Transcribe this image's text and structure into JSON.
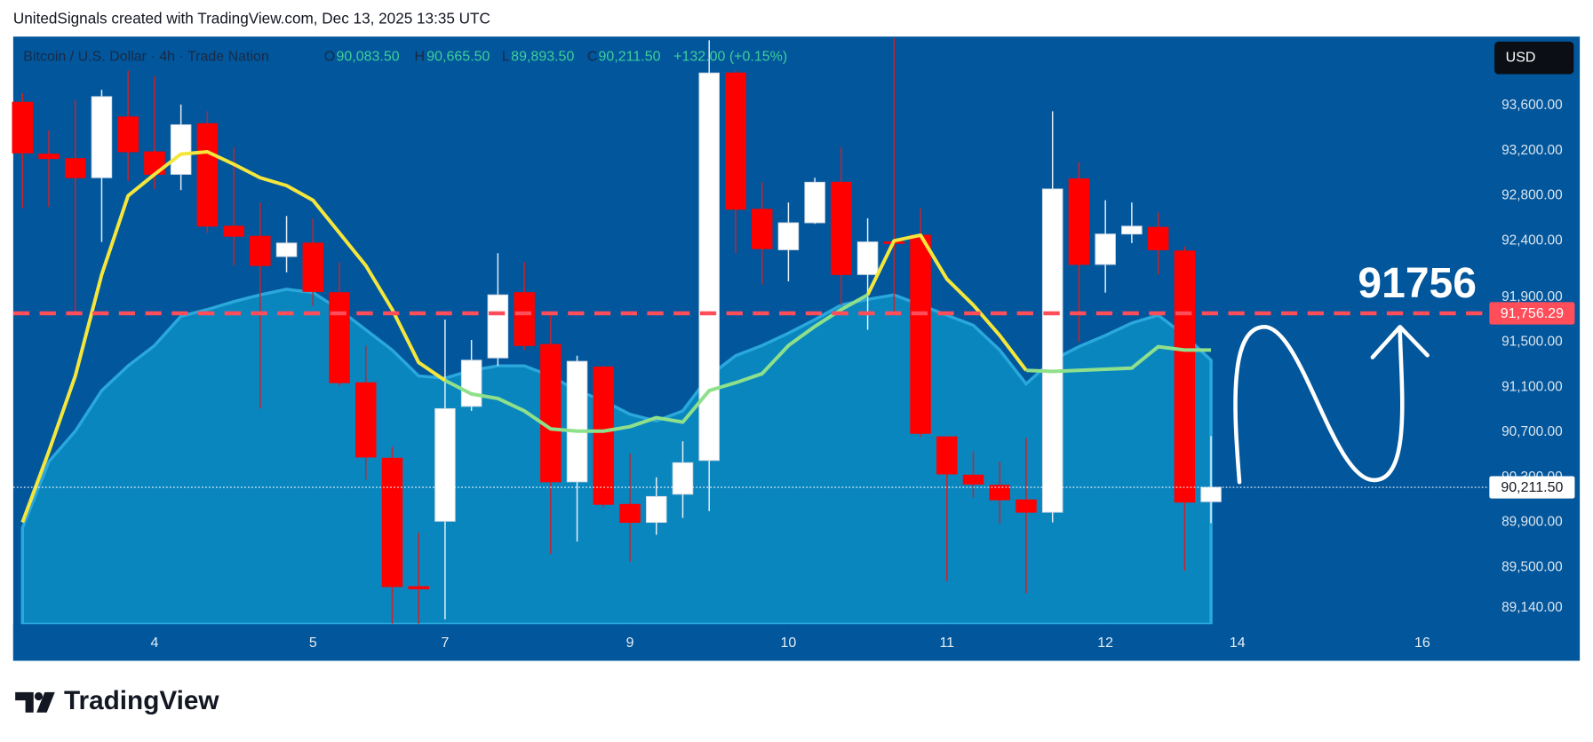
{
  "chart_data": {
    "type": "candlestick",
    "credit": "UnitedSignals created with TradingView.com, Dec 13, 2025 13:35 UTC",
    "symbol": "Bitcoin / U.S. Dollar · 4h · Trade Nation",
    "legend": {
      "o_label": "O",
      "o_value": "90,083.50",
      "h_label": "H",
      "h_value": "90,665.50",
      "l_label": "L",
      "l_value": "89,893.50",
      "c_label": "C",
      "c_value": "90,211.50",
      "change": "+132.00 (+0.15%)"
    },
    "currency": "USD",
    "brand": "TradingView",
    "annotation": "91756",
    "up_color": "#ffffff",
    "down_color": "#ff0000",
    "open": [
      93630,
      93170,
      93130,
      92960,
      93500,
      93190,
      92990,
      93440,
      92530,
      92440,
      92260,
      92380,
      91940,
      91140,
      90470,
      89330,
      89910,
      90930,
      91360,
      91940,
      91480,
      90260,
      91280,
      90060,
      89900,
      90150,
      90450,
      93890,
      92680,
      92320,
      92560,
      92920,
      92100,
      92390,
      92450,
      90660,
      90320,
      90230,
      90100,
      89990,
      92950,
      92190,
      92460,
      92520,
      92310,
      90083.5
    ],
    "high": [
      93710,
      93380,
      93650,
      93740,
      93910,
      93860,
      93610,
      93550,
      93230,
      92740,
      92620,
      92600,
      92210,
      91470,
      90570,
      89810,
      91700,
      91520,
      92290,
      92210,
      91740,
      91380,
      91290,
      90510,
      90300,
      90620,
      94180,
      93910,
      92920,
      92740,
      92960,
      93230,
      92600,
      94200,
      92690,
      90660,
      90530,
      90440,
      90650,
      93550,
      93100,
      92760,
      92740,
      92650,
      92350,
      90665.5
    ],
    "low": [
      92690,
      92700,
      91760,
      92390,
      92930,
      92860,
      92850,
      92470,
      92180,
      90910,
      92120,
      91820,
      91110,
      90280,
      89000,
      89000,
      89040,
      90890,
      91290,
      91430,
      89620,
      89730,
      90030,
      89550,
      89790,
      89940,
      90000,
      92290,
      92010,
      92040,
      92550,
      91830,
      91610,
      91740,
      90660,
      89380,
      90120,
      89890,
      89270,
      89900,
      91500,
      91940,
      92380,
      92100,
      89470,
      89893.5
    ],
    "close": [
      93180,
      93130,
      92960,
      93680,
      93190,
      92990,
      93430,
      92530,
      92440,
      92180,
      92380,
      91950,
      91140,
      90480,
      89330,
      89310,
      90910,
      91340,
      91920,
      91470,
      90260,
      91330,
      90060,
      89900,
      90130,
      90430,
      93890,
      92680,
      92330,
      92560,
      92920,
      92100,
      92390,
      92380,
      90690,
      90330,
      90240,
      90100,
      89990,
      92860,
      92190,
      92460,
      92530,
      92320,
      90080,
      90211.5
    ],
    "series": [
      {
        "color": "#f5e63c",
        "values": [
          89900,
          90530,
          91200,
          92100,
          92800,
          92990,
          93170,
          93190,
          93080,
          92960,
          92890,
          92760,
          92470,
          92180,
          91790,
          91320,
          91160,
          null,
          null,
          null,
          null,
          null,
          null,
          null,
          null,
          null,
          null,
          null,
          null,
          null,
          null,
          null,
          91920,
          92400,
          92450,
          92060,
          91830,
          91560,
          91250,
          null,
          null,
          null,
          null,
          null,
          null,
          null
        ]
      },
      {
        "color": "#8fe08a",
        "values": [
          null,
          null,
          null,
          null,
          null,
          null,
          null,
          null,
          null,
          null,
          null,
          null,
          null,
          null,
          null,
          null,
          91160,
          91040,
          91000,
          90890,
          90730,
          90710,
          90710,
          90750,
          90830,
          90790,
          91070,
          91140,
          91220,
          91470,
          91640,
          91790,
          91920,
          null,
          null,
          null,
          null,
          null,
          91250,
          91240,
          91250,
          91260,
          91270,
          91460,
          91430,
          91430
        ]
      }
    ],
    "band": {
      "color": "#0a86bf",
      "values": [
        89850,
        90440,
        90710,
        91070,
        91290,
        91470,
        91730,
        91790,
        91860,
        91920,
        91970,
        91940,
        91790,
        91610,
        91430,
        91200,
        91180,
        91250,
        91290,
        91290,
        91200,
        91070,
        90980,
        90860,
        90800,
        90890,
        91200,
        91380,
        91470,
        91580,
        91700,
        91830,
        91880,
        91920,
        91830,
        91740,
        91650,
        91430,
        91130,
        91340,
        91460,
        91560,
        91670,
        91740,
        91560,
        91340
      ]
    },
    "levels": [
      {
        "value": 91756.29,
        "label": "91,756.29",
        "color": "#ff4d5a",
        "style": "dashed"
      },
      {
        "value": 90211.5,
        "label": "90,211.50",
        "color": "#ffffff",
        "style": "dotted"
      }
    ],
    "xlim": [
      -0.35,
      55.5
    ],
    "ylim": [
      88996,
      94204
    ],
    "xticks": [
      {
        "value": 5,
        "label": "4"
      },
      {
        "value": 11,
        "label": "5"
      },
      {
        "value": 16,
        "label": "7"
      },
      {
        "value": 23,
        "label": "9"
      },
      {
        "value": 29,
        "label": "10"
      },
      {
        "value": 35,
        "label": "11"
      },
      {
        "value": 41,
        "label": "12"
      },
      {
        "value": 46,
        "label": "14"
      },
      {
        "value": 53,
        "label": "16"
      }
    ],
    "yticks": [
      {
        "value": 89140,
        "label": "89,140.00"
      },
      {
        "value": 89500,
        "label": "89,500.00"
      },
      {
        "value": 89900,
        "label": "89,900.00"
      },
      {
        "value": 90300,
        "label": "90,300.00"
      },
      {
        "value": 90700,
        "label": "90,700.00"
      },
      {
        "value": 91100,
        "label": "91,100.00"
      },
      {
        "value": 91500,
        "label": "91,500.00"
      },
      {
        "value": 91900,
        "label": "91,900.00"
      },
      {
        "value": 92400,
        "label": "92,400.00"
      },
      {
        "value": 92800,
        "label": "92,800.00"
      },
      {
        "value": 93200,
        "label": "93,200.00"
      },
      {
        "value": 93600,
        "label": "93,600.00"
      }
    ],
    "grid": false
  }
}
